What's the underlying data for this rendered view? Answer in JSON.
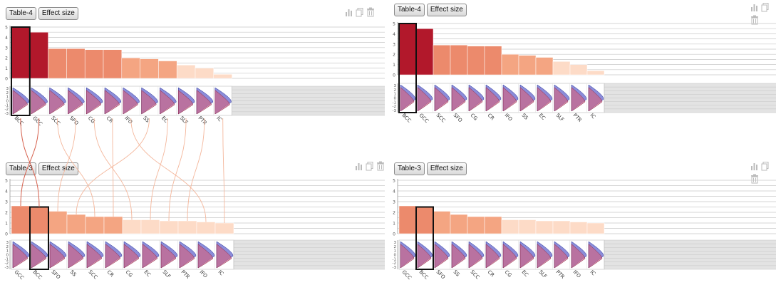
{
  "panels": [
    {
      "table_label": "Table-4",
      "effect_label": "Effect size"
    },
    {
      "table_label": "Table-4",
      "effect_label": "Effect size"
    },
    {
      "table_label": "Table-3",
      "effect_label": "Effect size"
    },
    {
      "table_label": "Table-3",
      "effect_label": "Effect size"
    }
  ],
  "toolbar_icons": [
    "chart-icon",
    "copy-icon",
    "trash-icon"
  ],
  "colors": {
    "strong": "#b2182b",
    "mid": "#d6604d",
    "light": "#f4a582",
    "pale": "#fddbc7",
    "distribution_a": "#6666cc",
    "distribution_b": "#cc6688",
    "highlight": "#111111"
  },
  "chart_data": [
    {
      "type": "bar",
      "categories": [
        "BCC",
        "GCC",
        "SCC",
        "SFO",
        "CG",
        "CR",
        "IFO",
        "SS",
        "EC",
        "SLF",
        "PTR",
        "IC"
      ],
      "values": [
        5.0,
        4.5,
        2.9,
        2.9,
        2.8,
        2.8,
        2.0,
        1.9,
        1.7,
        1.3,
        1.0,
        0.4
      ],
      "ylim": [
        0,
        5
      ],
      "y_ticks": [
        "0",
        "1",
        "2",
        "3",
        "4",
        "5"
      ],
      "dist_ticks": [
        "3",
        "2",
        "1",
        "0",
        "-1",
        "-2",
        "-3"
      ],
      "highlighted": "BCC",
      "grid": true
    },
    {
      "type": "bar",
      "categories": [
        "BCC",
        "GCC",
        "SCC",
        "SFO",
        "CG",
        "CR",
        "IFO",
        "SS",
        "EC",
        "SLF",
        "PTR",
        "IC"
      ],
      "values": [
        5.0,
        4.5,
        2.9,
        2.9,
        2.8,
        2.8,
        2.0,
        1.9,
        1.7,
        1.3,
        1.0,
        0.4
      ],
      "ylim": [
        0,
        5
      ],
      "y_ticks": [
        "0",
        "1",
        "2",
        "3",
        "4",
        "5"
      ],
      "dist_ticks": [
        "3",
        "2",
        "1",
        "0",
        "-1",
        "-2",
        "-3"
      ],
      "highlighted": "BCC",
      "grid": true
    },
    {
      "type": "bar",
      "categories": [
        "GCC",
        "BCC",
        "SFO",
        "SS",
        "SCC",
        "CR",
        "CG",
        "EC",
        "SLF",
        "PTR",
        "IFO",
        "IC"
      ],
      "values": [
        2.6,
        2.5,
        2.1,
        1.8,
        1.6,
        1.6,
        1.3,
        1.3,
        1.2,
        1.2,
        1.1,
        1.0
      ],
      "ylim": [
        0,
        5
      ],
      "y_ticks": [
        "0",
        "1",
        "2",
        "3",
        "4",
        "5"
      ],
      "dist_ticks": [
        "3",
        "2",
        "1",
        "0",
        "-1",
        "-2",
        "-3"
      ],
      "highlighted": "BCC",
      "grid": true
    },
    {
      "type": "bar",
      "categories": [
        "GCC",
        "BCC",
        "SFO",
        "SS",
        "SCC",
        "CR",
        "CG",
        "EC",
        "SLF",
        "PTR",
        "IFO",
        "IC"
      ],
      "values": [
        2.6,
        2.5,
        2.1,
        1.8,
        1.6,
        1.6,
        1.3,
        1.3,
        1.2,
        1.2,
        1.1,
        1.0
      ],
      "ylim": [
        0,
        5
      ],
      "y_ticks": [
        "0",
        "1",
        "2",
        "3",
        "4",
        "5"
      ],
      "dist_ticks": [
        "3",
        "2",
        "1",
        "0",
        "-1",
        "-2",
        "-3"
      ],
      "highlighted": "BCC",
      "grid": true
    }
  ]
}
